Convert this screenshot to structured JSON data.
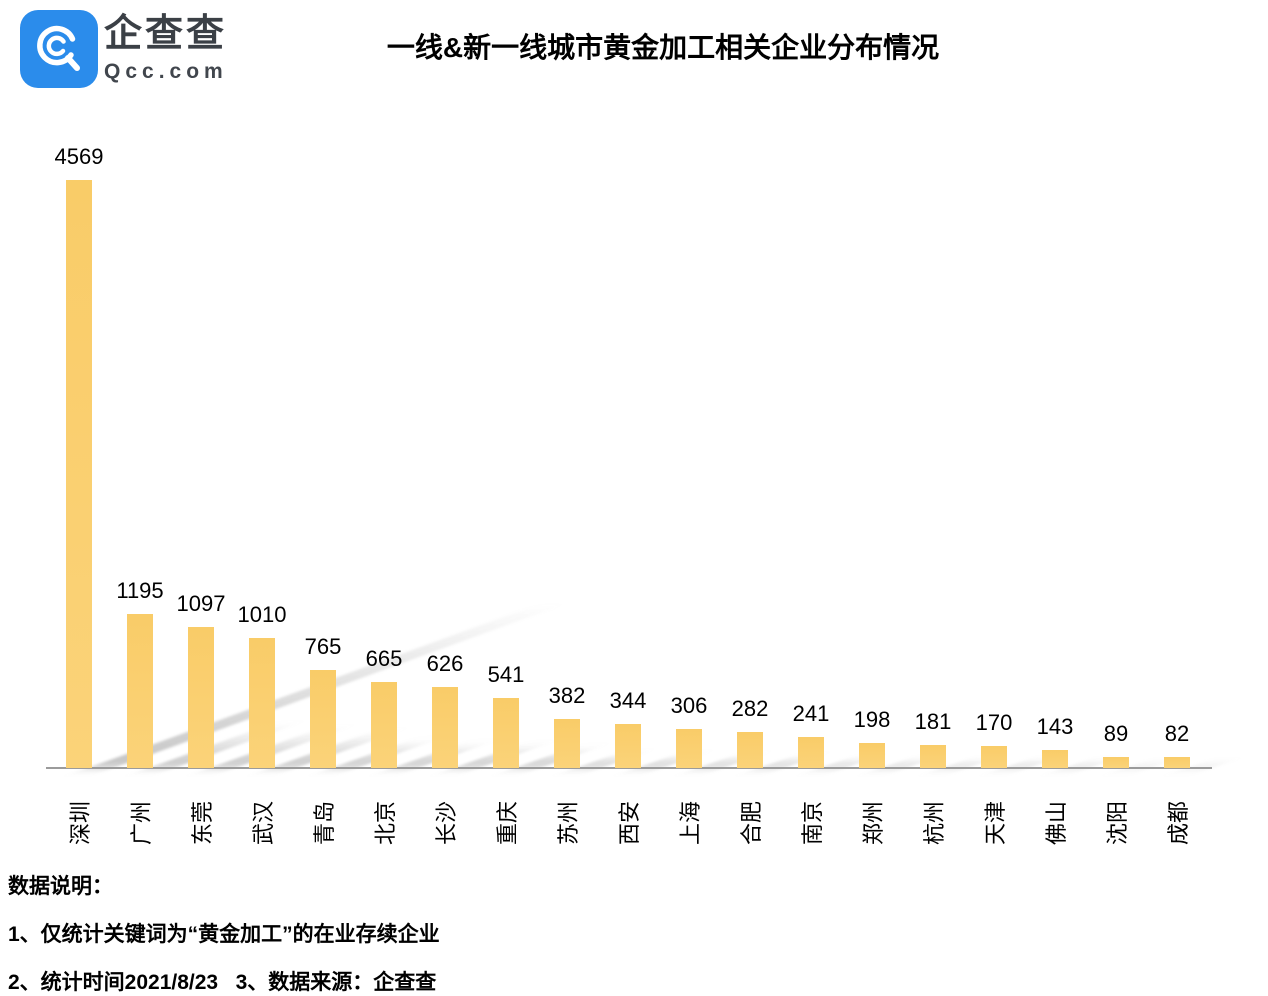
{
  "brand": {
    "name": "企查查",
    "domain": "Qcc.com",
    "logo_color": "#2b8ceb"
  },
  "header": {
    "title": "一线&新一线城市黄金加工相关企业分布情况"
  },
  "chart_data": {
    "type": "bar",
    "title": "一线&新一线城市黄金加工相关企业分布情况",
    "categories": [
      "深圳",
      "广州",
      "东莞",
      "武汉",
      "青岛",
      "北京",
      "长沙",
      "重庆",
      "苏州",
      "西安",
      "上海",
      "合肥",
      "南京",
      "郑州",
      "杭州",
      "天津",
      "佛山",
      "沈阳",
      "成都"
    ],
    "values": [
      4569,
      1195,
      1097,
      1010,
      765,
      665,
      626,
      541,
      382,
      344,
      306,
      282,
      241,
      198,
      181,
      170,
      143,
      89,
      82
    ],
    "xlabel": "",
    "ylabel": "",
    "ylim": [
      0,
      4700
    ],
    "grid": false,
    "legend": false,
    "data_labels": true,
    "bar_color": "#F9CC68",
    "axis_color": "#9b9b9b",
    "label_rotation": -90
  },
  "notes": {
    "heading": "数据说明：",
    "line1": "1、仅统计关键词为“黄金加工”的在业存续企业",
    "line2": "2、统计时间2021/8/23   3、数据来源：企查查"
  }
}
